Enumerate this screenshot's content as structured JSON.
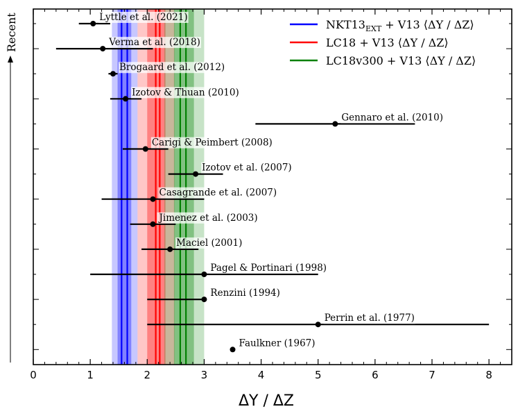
{
  "chart_data": {
    "type": "scatter",
    "title": "",
    "xlabel": "ΔY / ΔZ",
    "ylabel": "Recent",
    "xlim": [
      0,
      8.4
    ],
    "xticks": [
      0,
      1,
      2,
      3,
      4,
      5,
      6,
      7,
      8
    ],
    "grid": false,
    "legend_position": "top-right",
    "points": [
      {
        "label": "Lyttle et al. (2021)",
        "x": 1.05,
        "xerr_low": 0.8,
        "xerr_high": 1.35
      },
      {
        "label": "Verma et al. (2018)",
        "x": 1.22,
        "xerr_low": 0.4,
        "xerr_high": 2.1
      },
      {
        "label": "Brogaard et al. (2012)",
        "x": 1.4,
        "xerr_low": 1.32,
        "xerr_high": 1.48
      },
      {
        "label": "Izotov & Thuan (2010)",
        "x": 1.62,
        "xerr_low": 1.35,
        "xerr_high": 1.9
      },
      {
        "label": "Gennaro et al. (2010)",
        "x": 5.3,
        "xerr_low": 3.9,
        "xerr_high": 6.7
      },
      {
        "label": "Carigi & Peimbert (2008)",
        "x": 1.97,
        "xerr_low": 1.57,
        "xerr_high": 2.37
      },
      {
        "label": "Izotov et al. (2007)",
        "x": 2.85,
        "xerr_low": 2.37,
        "xerr_high": 3.33
      },
      {
        "label": "Casagrande et al. (2007)",
        "x": 2.1,
        "xerr_low": 1.2,
        "xerr_high": 3.0
      },
      {
        "label": "Jimenez et al. (2003)",
        "x": 2.1,
        "xerr_low": 1.7,
        "xerr_high": 2.5
      },
      {
        "label": "Maciel (2001)",
        "x": 2.4,
        "xerr_low": 1.9,
        "xerr_high": 2.9
      },
      {
        "label": "Pagel & Portinari (1998)",
        "x": 3.0,
        "xerr_low": 1.0,
        "xerr_high": 5.0
      },
      {
        "label": "Renzini (1994)",
        "x": 3.0,
        "xerr_low": 2.0,
        "xerr_high": 3.0
      },
      {
        "label": "Perrin et al. (1977)",
        "x": 5.0,
        "xerr_low": 2.0,
        "xerr_high": 8.0
      },
      {
        "label": "Faulkner (1967)",
        "x": 3.5,
        "xerr_low": 3.5,
        "xerr_high": 3.5
      }
    ],
    "bands": [
      {
        "name": "NKT13",
        "name_sub": "EXT",
        "name_suffix": " + V13 ⟨ΔY / ΔZ⟩",
        "color": "#0000ff",
        "center": 1.55,
        "center2": 1.65,
        "inner": [
          1.48,
          1.72
        ],
        "outer": [
          1.38,
          1.83
        ]
      },
      {
        "name": "LC18 + V13 ⟨ΔY / ΔZ⟩",
        "name_sub": "",
        "name_suffix": "",
        "color": "#ff0000",
        "center": 2.15,
        "center2": 2.22,
        "inner": [
          2.0,
          2.32
        ],
        "outer": [
          1.83,
          2.48
        ]
      },
      {
        "name": "LC18v300 + V13 ⟨ΔY / ΔZ⟩",
        "name_sub": "",
        "name_suffix": "",
        "color": "#008000",
        "center": 2.58,
        "center2": 2.68,
        "inner": [
          2.47,
          2.82
        ],
        "outer": [
          2.3,
          3.0
        ]
      }
    ]
  }
}
